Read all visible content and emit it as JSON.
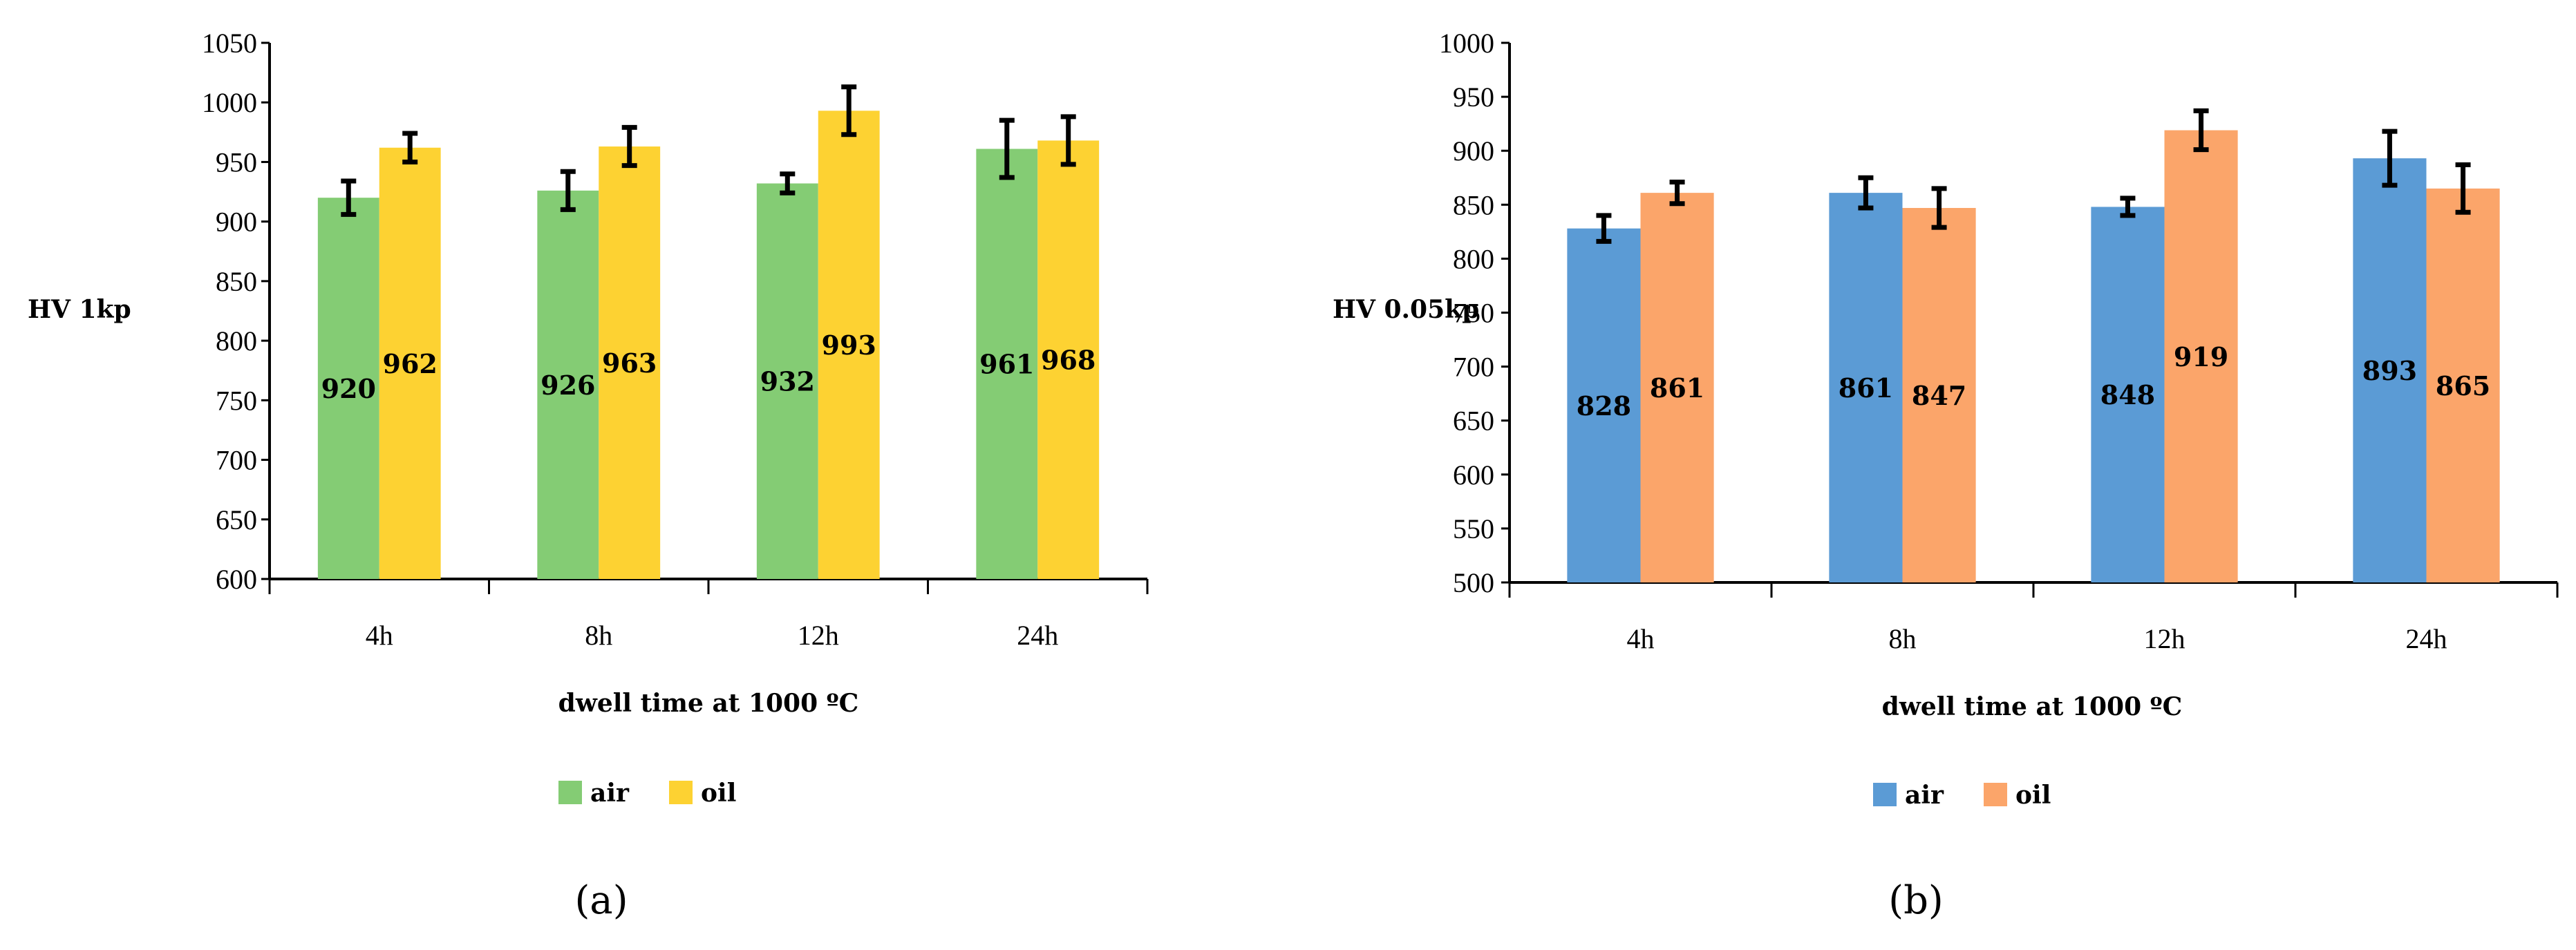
{
  "chart_data": [
    {
      "type": "bar",
      "panel_label": "(a)",
      "categories": [
        "4h",
        "8h",
        "12h",
        "24h"
      ],
      "series": [
        {
          "name": "air",
          "color": "#84cc74",
          "values": [
            920,
            926,
            932,
            961
          ],
          "errors": [
            14,
            16,
            8,
            24
          ]
        },
        {
          "name": "oil",
          "color": "#fdd232",
          "values": [
            962,
            963,
            993,
            968
          ],
          "errors": [
            12,
            16,
            20,
            20
          ]
        }
      ],
      "data_labels": {
        "air": [
          "920",
          "926",
          "932",
          "961"
        ],
        "oil": [
          "962",
          "963",
          "993",
          "968"
        ]
      },
      "ylabel": "HV 1kp",
      "xlabel": "dwell time at 1000 ºC",
      "ylim": [
        600,
        1050
      ],
      "yticks": [
        600,
        650,
        700,
        750,
        800,
        850,
        900,
        950,
        1000,
        1050
      ],
      "ytick_labels": [
        "600",
        "650",
        "700",
        "750",
        "800",
        "850",
        "900",
        "950",
        "1000",
        "1050"
      ],
      "legend": [
        "air",
        "oil"
      ],
      "legend_position": "bottom",
      "grid": false
    },
    {
      "type": "bar",
      "panel_label": "(b)",
      "categories": [
        "4h",
        "8h",
        "12h",
        "24h"
      ],
      "series": [
        {
          "name": "air",
          "color": "#5b9bd5",
          "values": [
            828,
            861,
            848,
            893
          ],
          "errors": [
            12,
            14,
            8,
            25
          ]
        },
        {
          "name": "oil",
          "color": "#fba56a",
          "values": [
            861,
            847,
            919,
            865
          ],
          "errors": [
            10,
            18,
            18,
            22
          ]
        }
      ],
      "data_labels": {
        "air": [
          "828",
          "861",
          "848",
          "893"
        ],
        "oil": [
          "861",
          "847",
          "919",
          "865"
        ]
      },
      "ylabel": "HV 0.05kp",
      "xlabel": "dwell time at 1000 ºC",
      "ylim": [
        500,
        1000
      ],
      "yticks": [
        500,
        550,
        600,
        650,
        700,
        750,
        800,
        850,
        900,
        950,
        1000
      ],
      "ytick_labels": [
        "500",
        "550",
        "600",
        "650",
        "700",
        "750",
        "800",
        "850",
        "900",
        "950",
        "1000"
      ],
      "legend": [
        "air",
        "oil"
      ],
      "legend_position": "bottom",
      "grid": false
    }
  ]
}
